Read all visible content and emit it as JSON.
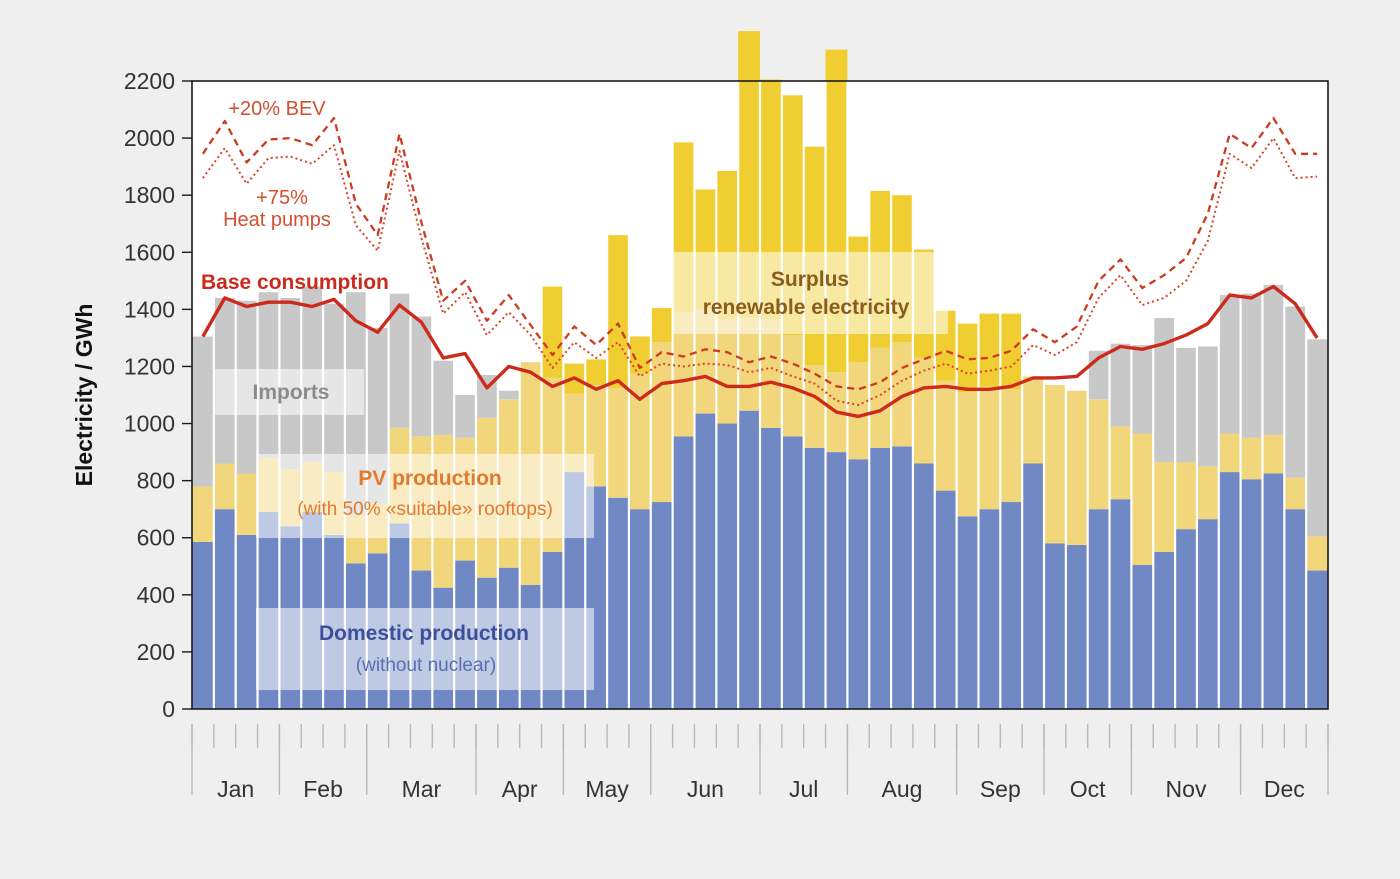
{
  "chart_data": {
    "type": "bar",
    "title": "",
    "ylabel": "Electricity / GWh",
    "xlabel": "",
    "ylim": [
      0,
      2200
    ],
    "yticks": [
      0,
      200,
      400,
      600,
      800,
      1000,
      1200,
      1400,
      1600,
      1800,
      2000,
      2200
    ],
    "months": [
      "Jan",
      "Feb",
      "Mar",
      "Apr",
      "May",
      "Jun",
      "Jul",
      "Aug",
      "Sep",
      "Oct",
      "Nov",
      "Dec"
    ],
    "week_month_boundaries": [
      0,
      4,
      8,
      13,
      17,
      21,
      26,
      30,
      35,
      39,
      43,
      48,
      52
    ],
    "grid": false,
    "colors": {
      "domestic": "#7089c4",
      "pv": "#f1d67b",
      "imports": "#c8c8c8",
      "surplus": "#f0ce31",
      "base_line": "#cc2a1d",
      "bev_line": "#cc3b20",
      "hp_line": "#d8442a",
      "domestic_label": "#3d4f9a",
      "pv_label": "#e07a2e",
      "surplus_label": "#8a5d1c",
      "imports_label": "#8c8c8c",
      "annotation": "#d25030"
    },
    "series": [
      {
        "name": "Domestic production",
        "values": [
          585,
          700,
          610,
          690,
          640,
          690,
          610,
          510,
          545,
          650,
          485,
          425,
          520,
          460,
          495,
          435,
          550,
          830,
          780,
          740,
          700,
          725,
          955,
          1035,
          1000,
          1045,
          985,
          955,
          915,
          900,
          875,
          915,
          920,
          860,
          765,
          675,
          700,
          725,
          860,
          580,
          575,
          700,
          735,
          505,
          550,
          630,
          665,
          830,
          805,
          825,
          700,
          485
        ]
      },
      {
        "name": "PV production",
        "values": [
          195,
          160,
          215,
          190,
          200,
          175,
          220,
          170,
          175,
          335,
          470,
          535,
          430,
          560,
          590,
          780,
          610,
          275,
          355,
          385,
          475,
          560,
          435,
          365,
          365,
          325,
          380,
          355,
          290,
          280,
          340,
          350,
          365,
          370,
          385,
          435,
          430,
          395,
          305,
          555,
          540,
          385,
          255,
          460,
          315,
          235,
          185,
          135,
          145,
          135,
          110,
          120
        ]
      },
      {
        "name": "Imports",
        "values": [
          525,
          580,
          605,
          580,
          600,
          615,
          590,
          780,
          615,
          470,
          420,
          260,
          150,
          150,
          30,
          0,
          0,
          0,
          0,
          0,
          0,
          0,
          0,
          0,
          0,
          0,
          0,
          0,
          0,
          0,
          0,
          0,
          0,
          0,
          0,
          0,
          0,
          0,
          0,
          0,
          0,
          170,
          290,
          310,
          505,
          400,
          420,
          485,
          505,
          525,
          600,
          690
        ]
      },
      {
        "name": "Surplus renewable electricity",
        "values": [
          0,
          0,
          0,
          0,
          0,
          0,
          0,
          0,
          0,
          0,
          0,
          0,
          0,
          0,
          0,
          0,
          320,
          105,
          90,
          535,
          130,
          120,
          595,
          420,
          520,
          1005,
          840,
          840,
          765,
          1130,
          440,
          550,
          515,
          380,
          245,
          240,
          255,
          265,
          0,
          0,
          0,
          0,
          0,
          0,
          0,
          0,
          0,
          0,
          0,
          0,
          0,
          0
        ]
      }
    ],
    "lines": [
      {
        "name": "Base consumption",
        "values": [
          1305,
          1440,
          1410,
          1425,
          1425,
          1410,
          1435,
          1360,
          1320,
          1415,
          1355,
          1230,
          1245,
          1125,
          1200,
          1180,
          1130,
          1160,
          1120,
          1150,
          1085,
          1140,
          1150,
          1165,
          1130,
          1130,
          1145,
          1125,
          1095,
          1040,
          1025,
          1045,
          1095,
          1125,
          1130,
          1120,
          1120,
          1130,
          1160,
          1160,
          1165,
          1230,
          1270,
          1260,
          1280,
          1310,
          1350,
          1450,
          1440,
          1480,
          1420,
          1300
        ]
      },
      {
        "name": "+20% BEV",
        "values": [
          1945,
          2060,
          1915,
          1995,
          2000,
          1975,
          2070,
          1770,
          1660,
          2015,
          1705,
          1430,
          1500,
          1360,
          1450,
          1345,
          1240,
          1340,
          1275,
          1350,
          1195,
          1250,
          1235,
          1260,
          1250,
          1215,
          1235,
          1210,
          1175,
          1130,
          1120,
          1145,
          1195,
          1225,
          1255,
          1225,
          1230,
          1255,
          1330,
          1285,
          1340,
          1500,
          1575,
          1475,
          1520,
          1580,
          1735,
          2015,
          1965,
          2070,
          1945,
          1945
        ]
      },
      {
        "name": "+75% Heat pumps",
        "values": [
          1860,
          1965,
          1840,
          1930,
          1935,
          1910,
          1975,
          1695,
          1605,
          1955,
          1650,
          1385,
          1460,
          1310,
          1390,
          1310,
          1195,
          1285,
          1230,
          1285,
          1165,
          1210,
          1200,
          1210,
          1205,
          1180,
          1195,
          1165,
          1140,
          1080,
          1065,
          1100,
          1150,
          1185,
          1210,
          1175,
          1185,
          1200,
          1275,
          1240,
          1285,
          1440,
          1520,
          1415,
          1440,
          1500,
          1640,
          1945,
          1895,
          2000,
          1860,
          1865
        ]
      }
    ],
    "annotations": {
      "bev_label": "+20% BEV",
      "hp_pct": "+75%",
      "hp_label": "Heat pumps",
      "base_label": "Base consumption",
      "surplus_line1": "Surplus",
      "surplus_line2": "renewable electricity",
      "imports_label": "Imports",
      "pv_label": "PV production",
      "pv_sub": "(with 50% «suitable» rooftops)",
      "domestic_label": "Domestic production",
      "domestic_sub": "(without nuclear)"
    }
  }
}
